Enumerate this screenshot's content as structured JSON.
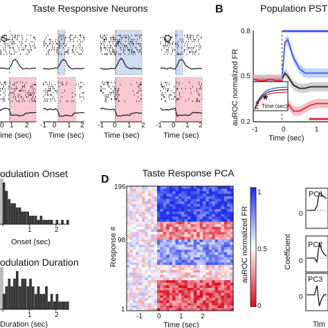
{
  "figure": {
    "panel_a_title": "Taste Responsive Neurons",
    "panel_a_cols": [
      "S",
      "N",
      "C",
      "Q"
    ],
    "panel_a_xticks": [
      "-1",
      "0",
      "1",
      "2"
    ],
    "panel_a_xlabel": "Time (sec)",
    "panel_b_label": "B",
    "panel_b_title": "Population PST",
    "panel_b_ylabel": "auROC normalized FR",
    "panel_b_yticks": [
      "0.8",
      "0.5",
      "0.2"
    ],
    "panel_b_xticks": [
      "-1",
      "0",
      "1"
    ],
    "panel_b_xlabel": "Time (sec)",
    "panel_b_inset_xlabel": "Time (sec)",
    "panel_b_inset_ylabel": "Fra",
    "panel_b_inset_star": "*",
    "panel_c_title1": "odulation Onset",
    "panel_c_xticks1": [
      "0",
      "1",
      "2"
    ],
    "panel_c_xlabel1": "Onset (sec)",
    "panel_c_title2": "odulation Duration",
    "panel_c_xticks2": [
      "0",
      "1",
      "2"
    ],
    "panel_c_xlabel2": "Duration (sec)",
    "panel_d_label": "D",
    "panel_d_title": "Taste Response PCA",
    "panel_d_ylabel": "Response #",
    "panel_d_yticks": [
      "196",
      "98",
      "1"
    ],
    "panel_d_xticks": [
      "-1",
      "0",
      "1",
      "2"
    ],
    "panel_d_xlabel": "Time (sec)",
    "panel_d_cbar_label": "auROC normalized FR",
    "panel_d_cbar_ticks": [
      "1",
      "0.5",
      "0"
    ],
    "panel_e_pcs": [
      "PC1",
      "PC2",
      "PC3"
    ],
    "panel_e_ylabel": "Coefficient",
    "panel_e_zeros": [
      "0",
      "0",
      "0"
    ],
    "panel_e_xlabel": "Tim"
  },
  "colors": {
    "pink": "#f9c8d3",
    "lightblue": "#cfdcf2",
    "blue": "#3a5be0",
    "red": "#e8213a",
    "dark": "#222222",
    "gray_bar": "#bdbdbd"
  },
  "chart_data": [
    {
      "type": "line",
      "panel": "B",
      "title": "Population PST",
      "ylabel": "auROC normalized FR",
      "ylim": [
        0.2,
        0.8
      ],
      "xlim": [
        -1,
        1.6
      ],
      "x": [
        -1,
        -0.8,
        -0.6,
        -0.4,
        -0.2,
        0,
        0.1,
        0.2,
        0.4,
        0.6,
        0.8,
        1.0,
        1.2,
        1.4,
        1.6
      ],
      "series": [
        {
          "color": "#3a5be0",
          "values": [
            0.47,
            0.47,
            0.47,
            0.47,
            0.47,
            0.48,
            0.72,
            0.74,
            0.62,
            0.55,
            0.52,
            0.52,
            0.52,
            0.52,
            0.52
          ]
        },
        {
          "color": "#222222",
          "values": [
            0.48,
            0.48,
            0.48,
            0.48,
            0.48,
            0.48,
            0.52,
            0.5,
            0.44,
            0.42,
            0.42,
            0.43,
            0.43,
            0.43,
            0.43
          ]
        },
        {
          "color": "#e8213a",
          "values": [
            0.48,
            0.47,
            0.47,
            0.48,
            0.47,
            0.47,
            0.36,
            0.32,
            0.27,
            0.27,
            0.29,
            0.31,
            0.32,
            0.32,
            0.32
          ]
        }
      ]
    },
    {
      "type": "bar",
      "panel": "C-onset",
      "xlim": [
        0,
        2.5
      ],
      "values": [
        10,
        8,
        6,
        5,
        5,
        4,
        4,
        3,
        3,
        3,
        2,
        2,
        2,
        1,
        2,
        1,
        1,
        1,
        1,
        0,
        1,
        0,
        1,
        0,
        1
      ]
    },
    {
      "type": "bar",
      "panel": "C-duration",
      "xlim": [
        0,
        2.5
      ],
      "values": [
        2,
        3,
        4,
        3,
        4,
        5,
        3,
        4,
        4,
        3,
        4,
        3,
        2,
        3,
        2,
        2,
        3,
        1,
        2,
        1,
        2,
        1,
        1,
        1,
        1
      ]
    },
    {
      "type": "heatmap",
      "panel": "D",
      "title": "Taste Response PCA",
      "ylabel": "Response #",
      "xlim": [
        -1,
        2.5
      ],
      "ylim": [
        1,
        196
      ],
      "colorbar": {
        "label": "auROC normalized FR",
        "range": [
          0,
          1
        ]
      }
    },
    {
      "type": "line",
      "panel": "E",
      "ylabel": "Coefficient",
      "series": [
        {
          "name": "PC1",
          "values": [
            0,
            0,
            0,
            0,
            0.2,
            0.9,
            0.8,
            0.7,
            0.6
          ]
        },
        {
          "name": "PC2",
          "values": [
            0,
            0,
            0,
            0,
            -0.2,
            0.8,
            0.4,
            0.2,
            0.1
          ]
        },
        {
          "name": "PC3",
          "values": [
            0,
            0,
            0,
            0,
            0.5,
            -0.6,
            -0.2,
            0.0,
            0.0
          ]
        }
      ]
    }
  ]
}
